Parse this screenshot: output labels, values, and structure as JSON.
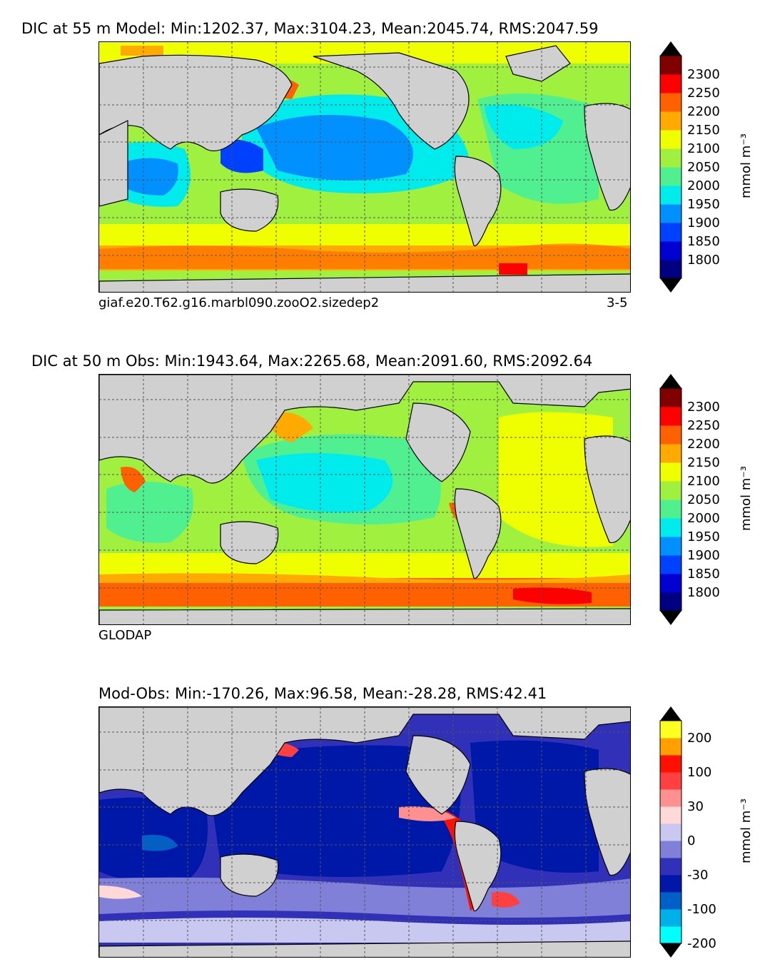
{
  "panels": [
    {
      "title": "DIC at 55 m Model: Min:1202.37, Max:3104.23, Mean:2045.74, RMS:2047.59",
      "subtitle_left": "giaf.e20.T62.g16.marbl090.zooO2.sizedep2",
      "subtitle_right": "3-5",
      "colorbar_label": "mmol m⁻³",
      "colorbar_ticks": [
        "2300",
        "2250",
        "2200",
        "2150",
        "2100",
        "2050",
        "2000",
        "1950",
        "1900",
        "1850",
        "1800"
      ],
      "colorbar_colors": [
        "#000080",
        "#0000d0",
        "#0040ff",
        "#0090ff",
        "#00ebeb",
        "#50f090",
        "#a0f040",
        "#f0ff00",
        "#ffaa00",
        "#ff6000",
        "#ff0000",
        "#800000"
      ],
      "colorbar_extend_colors": {
        "low": "#000000",
        "high": "#000000"
      }
    },
    {
      "title": "DIC at 50 m Obs: Min:1943.64, Max:2265.68, Mean:2091.60, RMS:2092.64",
      "subtitle_left": "GLODAP",
      "subtitle_right": "",
      "colorbar_label": "mmol m⁻³",
      "colorbar_ticks": [
        "2300",
        "2250",
        "2200",
        "2150",
        "2100",
        "2050",
        "2000",
        "1950",
        "1900",
        "1850",
        "1800"
      ],
      "colorbar_colors": [
        "#000080",
        "#0000d0",
        "#0040ff",
        "#0090ff",
        "#00ebeb",
        "#50f090",
        "#a0f040",
        "#f0ff00",
        "#ffaa00",
        "#ff6000",
        "#ff0000",
        "#800000"
      ],
      "colorbar_extend_colors": {
        "low": "#000000",
        "high": "#000000"
      }
    },
    {
      "title": "Mod-Obs: Min:-170.26, Max:96.58, Mean:-28.28, RMS:42.41",
      "subtitle_left": "",
      "subtitle_right": "",
      "colorbar_label": "mmol m⁻³",
      "colorbar_ticks": [
        "200",
        "100",
        "30",
        "0",
        "-30",
        "-100",
        "-200"
      ],
      "colorbar_colors": [
        "#00ffff",
        "#00b0e8",
        "#0060c8",
        "#0018a8",
        "#3030b8",
        "#8080d8",
        "#c8c8f0",
        "#ffd8d8",
        "#ff9090",
        "#ff4040",
        "#ff1000",
        "#ff9f00",
        "#ffff20"
      ],
      "colorbar_extend_colors": {
        "low": "#000000",
        "high": "#000000"
      }
    }
  ],
  "map_colors": {
    "land": "#d0d0d0",
    "coast": "#000000",
    "grid": "#555555"
  }
}
